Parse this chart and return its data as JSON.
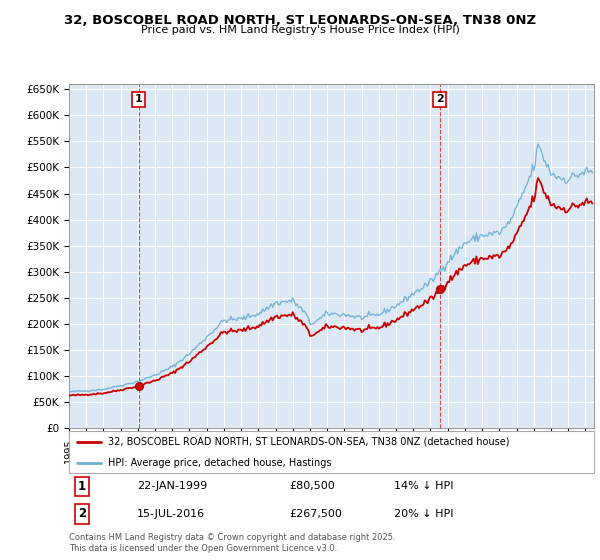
{
  "title": "32, BOSCOBEL ROAD NORTH, ST LEONARDS-ON-SEA, TN38 0NZ",
  "subtitle": "Price paid vs. HM Land Registry's House Price Index (HPI)",
  "ylim": [
    0,
    660000
  ],
  "yticks": [
    0,
    50000,
    100000,
    150000,
    200000,
    250000,
    300000,
    350000,
    400000,
    450000,
    500000,
    550000,
    600000,
    650000
  ],
  "ytick_labels": [
    "£0",
    "£50K",
    "£100K",
    "£150K",
    "£200K",
    "£250K",
    "£300K",
    "£350K",
    "£400K",
    "£450K",
    "£500K",
    "£550K",
    "£600K",
    "£650K"
  ],
  "purchase1": {
    "date_num": 1999.056,
    "price": 80500,
    "label": "1",
    "date_str": "22-JAN-1999",
    "hpi_diff": "14% ↓ HPI"
  },
  "purchase2": {
    "date_num": 2016.542,
    "price": 267500,
    "label": "2",
    "date_str": "15-JUL-2016",
    "hpi_diff": "20% ↓ HPI"
  },
  "vline_color": "#cc0000",
  "hpi_color": "#6baed6",
  "price_color": "#cc0000",
  "background_color": "#ffffff",
  "plot_bg_color": "#dce9f5",
  "grid_color": "#ffffff",
  "legend_label_price": "32, BOSCOBEL ROAD NORTH, ST LEONARDS-ON-SEA, TN38 0NZ (detached house)",
  "legend_label_hpi": "HPI: Average price, detached house, Hastings",
  "footer": "Contains HM Land Registry data © Crown copyright and database right 2025.\nThis data is licensed under the Open Government Licence v3.0.",
  "xstart": 1995.0,
  "xend": 2025.5
}
